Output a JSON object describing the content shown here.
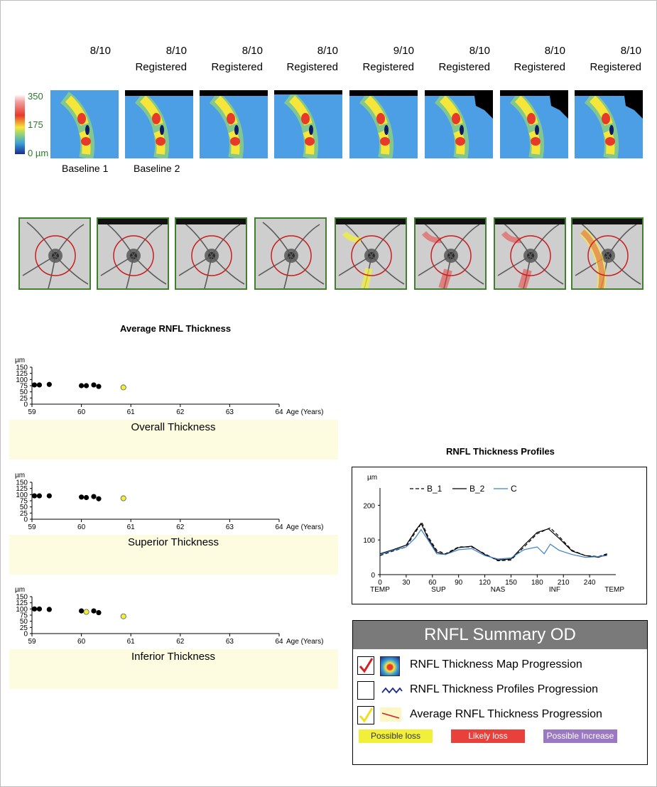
{
  "header": {
    "dates": [
      "8/10",
      "8/10",
      "8/10",
      "8/10",
      "9/10",
      "8/10",
      "8/10",
      "8/10"
    ],
    "registered": [
      "",
      "Registered",
      "Registered",
      "Registered",
      "Registered",
      "Registered",
      "Registered",
      "Registered"
    ]
  },
  "colorbar": {
    "top": "350",
    "mid": "175",
    "bottom": "0 µm"
  },
  "baselines": {
    "b1": "Baseline 1",
    "b2": "Baseline 2"
  },
  "avg_title": "Average RNFL Thickness",
  "profiles_title": "RNFL Thickness Profiles",
  "trends": [
    {
      "name": "Overall Thickness"
    },
    {
      "name": "Superior Thickness"
    },
    {
      "name": "Inferior Thickness"
    }
  ],
  "trend_axis": {
    "unit": "µm",
    "yticks": [
      "150",
      "125",
      "100",
      "75",
      "50",
      "25",
      "0"
    ],
    "xticks": [
      "59",
      "60",
      "61",
      "62",
      "63",
      "64"
    ],
    "xlabel": "Age (Years)"
  },
  "summary": {
    "title": "RNFL Summary OD",
    "rows": [
      "RNFL Thickness Map Progression",
      "RNFL Thickness Profiles Progression",
      "Average RNFL Thickness Progression"
    ],
    "legend": [
      "Possible loss",
      "Likely loss",
      "Possible Increase"
    ]
  },
  "colors": {
    "possible_loss": "#f2ef3a",
    "likely_loss": "#e8413c",
    "possible_increase": "#9a78c2",
    "frame_green": "#3f7f2e"
  },
  "chart_data": [
    {
      "type": "scatter",
      "title": "Overall Thickness",
      "xlabel": "Age (Years)",
      "ylabel": "µm",
      "xlim": [
        59,
        64
      ],
      "ylim": [
        0,
        150
      ],
      "series": [
        {
          "values": [
            [
              59.05,
              78
            ],
            [
              59.15,
              78
            ],
            [
              59.35,
              80
            ],
            [
              60.0,
              75
            ],
            [
              60.1,
              75
            ],
            [
              60.25,
              78
            ],
            [
              60.35,
              72
            ]
          ]
        },
        {
          "values": [
            [
              60.85,
              68
            ]
          ]
        }
      ]
    },
    {
      "type": "scatter",
      "title": "Superior Thickness",
      "xlabel": "Age (Years)",
      "ylabel": "µm",
      "xlim": [
        59,
        64
      ],
      "ylim": [
        0,
        150
      ],
      "series": [
        {
          "values": [
            [
              59.05,
              95
            ],
            [
              59.15,
              95
            ],
            [
              59.35,
              95
            ],
            [
              60.0,
              90
            ],
            [
              60.1,
              88
            ],
            [
              60.25,
              92
            ],
            [
              60.35,
              83
            ]
          ]
        },
        {
          "values": [
            [
              60.85,
              85
            ]
          ]
        }
      ]
    },
    {
      "type": "scatter",
      "title": "Inferior Thickness",
      "xlabel": "Age (Years)",
      "ylabel": "µm",
      "xlim": [
        59,
        64
      ],
      "ylim": [
        0,
        150
      ],
      "series": [
        {
          "values": [
            [
              59.05,
              100
            ],
            [
              59.15,
              100
            ],
            [
              59.35,
              98
            ],
            [
              60.0,
              92
            ],
            [
              60.25,
              92
            ],
            [
              60.35,
              85
            ]
          ]
        },
        {
          "values": [
            [
              60.1,
              88
            ],
            [
              60.85,
              70
            ]
          ]
        }
      ]
    },
    {
      "type": "line",
      "title": "RNFL Thickness Profiles",
      "ylabel": "µm",
      "xlim": [
        0,
        270
      ],
      "ylim": [
        0,
        250
      ],
      "xticks": [
        "0",
        "30",
        "60",
        "90",
        "120",
        "150",
        "180",
        "210",
        "240"
      ],
      "xcats": [
        "TEMP",
        "SUP",
        "NAS",
        "INF",
        "TEMP"
      ],
      "yticks": [
        "200",
        "100",
        "0"
      ],
      "series": [
        {
          "name": "B_1",
          "values": [
            [
              0,
              55
            ],
            [
              15,
              68
            ],
            [
              30,
              80
            ],
            [
              40,
              120
            ],
            [
              48,
              150
            ],
            [
              55,
              110
            ],
            [
              65,
              70
            ],
            [
              75,
              60
            ],
            [
              90,
              80
            ],
            [
              105,
              80
            ],
            [
              120,
              60
            ],
            [
              135,
              40
            ],
            [
              150,
              42
            ],
            [
              165,
              80
            ],
            [
              180,
              118
            ],
            [
              195,
              135
            ],
            [
              205,
              110
            ],
            [
              220,
              70
            ],
            [
              235,
              55
            ],
            [
              250,
              52
            ],
            [
              260,
              60
            ]
          ]
        },
        {
          "name": "B_2",
          "values": [
            [
              0,
              60
            ],
            [
              15,
              72
            ],
            [
              30,
              85
            ],
            [
              40,
              125
            ],
            [
              47,
              148
            ],
            [
              55,
              105
            ],
            [
              65,
              65
            ],
            [
              75,
              58
            ],
            [
              90,
              78
            ],
            [
              105,
              82
            ],
            [
              120,
              58
            ],
            [
              135,
              42
            ],
            [
              150,
              45
            ],
            [
              165,
              85
            ],
            [
              180,
              122
            ],
            [
              193,
              132
            ],
            [
              205,
              105
            ],
            [
              220,
              68
            ],
            [
              235,
              55
            ],
            [
              250,
              50
            ],
            [
              260,
              58
            ]
          ]
        },
        {
          "name": "C",
          "values": [
            [
              0,
              58
            ],
            [
              15,
              70
            ],
            [
              30,
              80
            ],
            [
              40,
              105
            ],
            [
              47,
              130
            ],
            [
              55,
              100
            ],
            [
              65,
              60
            ],
            [
              75,
              58
            ],
            [
              90,
              72
            ],
            [
              105,
              75
            ],
            [
              120,
              55
            ],
            [
              135,
              45
            ],
            [
              150,
              48
            ],
            [
              165,
              72
            ],
            [
              180,
              80
            ],
            [
              188,
              60
            ],
            [
              195,
              88
            ],
            [
              205,
              70
            ],
            [
              220,
              58
            ],
            [
              235,
              50
            ],
            [
              250,
              52
            ],
            [
              260,
              55
            ]
          ]
        }
      ]
    }
  ]
}
